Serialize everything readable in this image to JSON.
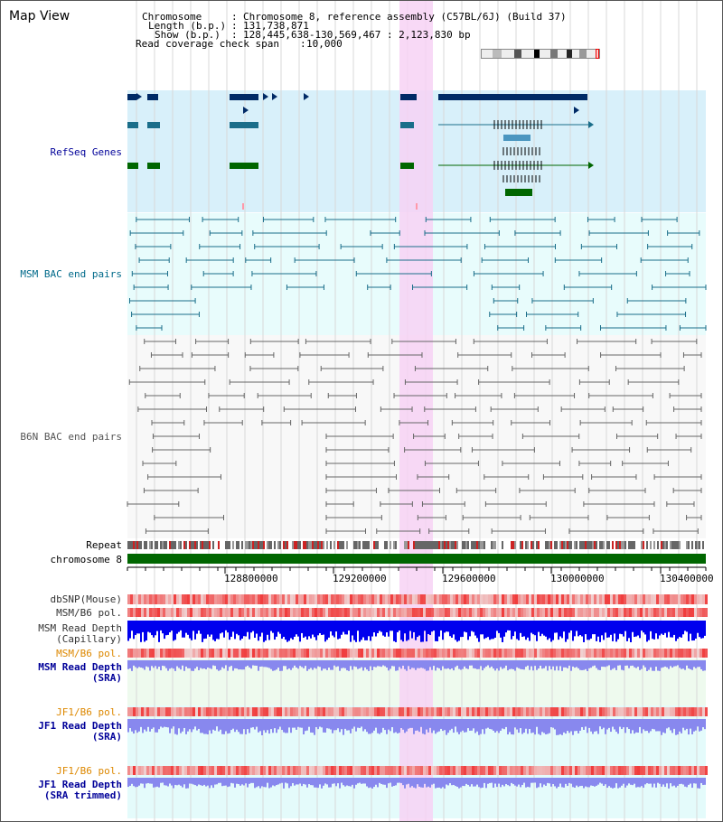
{
  "title": "Map View",
  "header": {
    "chromosome_label": "Chromosome",
    "chromosome_value": "Chromosome 8, reference assembly (C57BL/6J) (Build 37)",
    "length_label": "Length (b.p.)",
    "length_value": "131,738,871",
    "show_label": "Show (b.p.)",
    "show_value": "128,445,638-130,569,467 : 2,123,830 bp",
    "coverage_label": "Read coverage check span",
    "coverage_value": "10,000"
  },
  "tracks": {
    "refseq": "RefSeq Genes",
    "msm_bac": "MSM BAC end pairs",
    "b6n_bac": "B6N BAC end pairs",
    "repeat": "Repeat",
    "chromosome": "chromosome 8",
    "dbsnp": "dbSNP(Mouse)",
    "msm_b6_pol": "MSM/B6 pol.",
    "msm_read_depth_cap_1": "MSM Read Depth",
    "msm_read_depth_cap_2": "(Capillary)",
    "msm_b6_pol_2": "MSM/B6 pol.",
    "msm_read_depth_sra_1": "MSM Read Depth",
    "msm_read_depth_sra_2": "(SRA)",
    "jf1_b6_pol": "JF1/B6 pol.",
    "jf1_read_depth_sra_1": "JF1 Read Depth",
    "jf1_read_depth_sra_2": "(SRA)",
    "jf1_b6_pol_2": "JF1/B6 pol.",
    "jf1_read_depth_trim_1": "JF1 Read Depth",
    "jf1_read_depth_trim_2": "(SRA trimmed)"
  },
  "axis": {
    "ticks": [
      "128800000",
      "129200000",
      "129600000",
      "130000000",
      "130400000"
    ]
  },
  "colors": {
    "refseq_bg": "#d8f0fa",
    "msm_bg": "#e8fcfc",
    "highlight": "#f7d2f5",
    "refseq_dark": "#002a66",
    "refseq_mid": "#4a96c0",
    "refseq_green": "#006600",
    "msm_line": "#1a6e8a",
    "b6n_line": "#666666",
    "chromosome": "#006600",
    "snp": "#ee5555",
    "depth_blue": "#0000ee",
    "depth_light": "#8888ee",
    "title_blue": "#000099",
    "teal_label": "#006a8a",
    "grey_label": "#555555",
    "orange_label": "#dd8800"
  }
}
